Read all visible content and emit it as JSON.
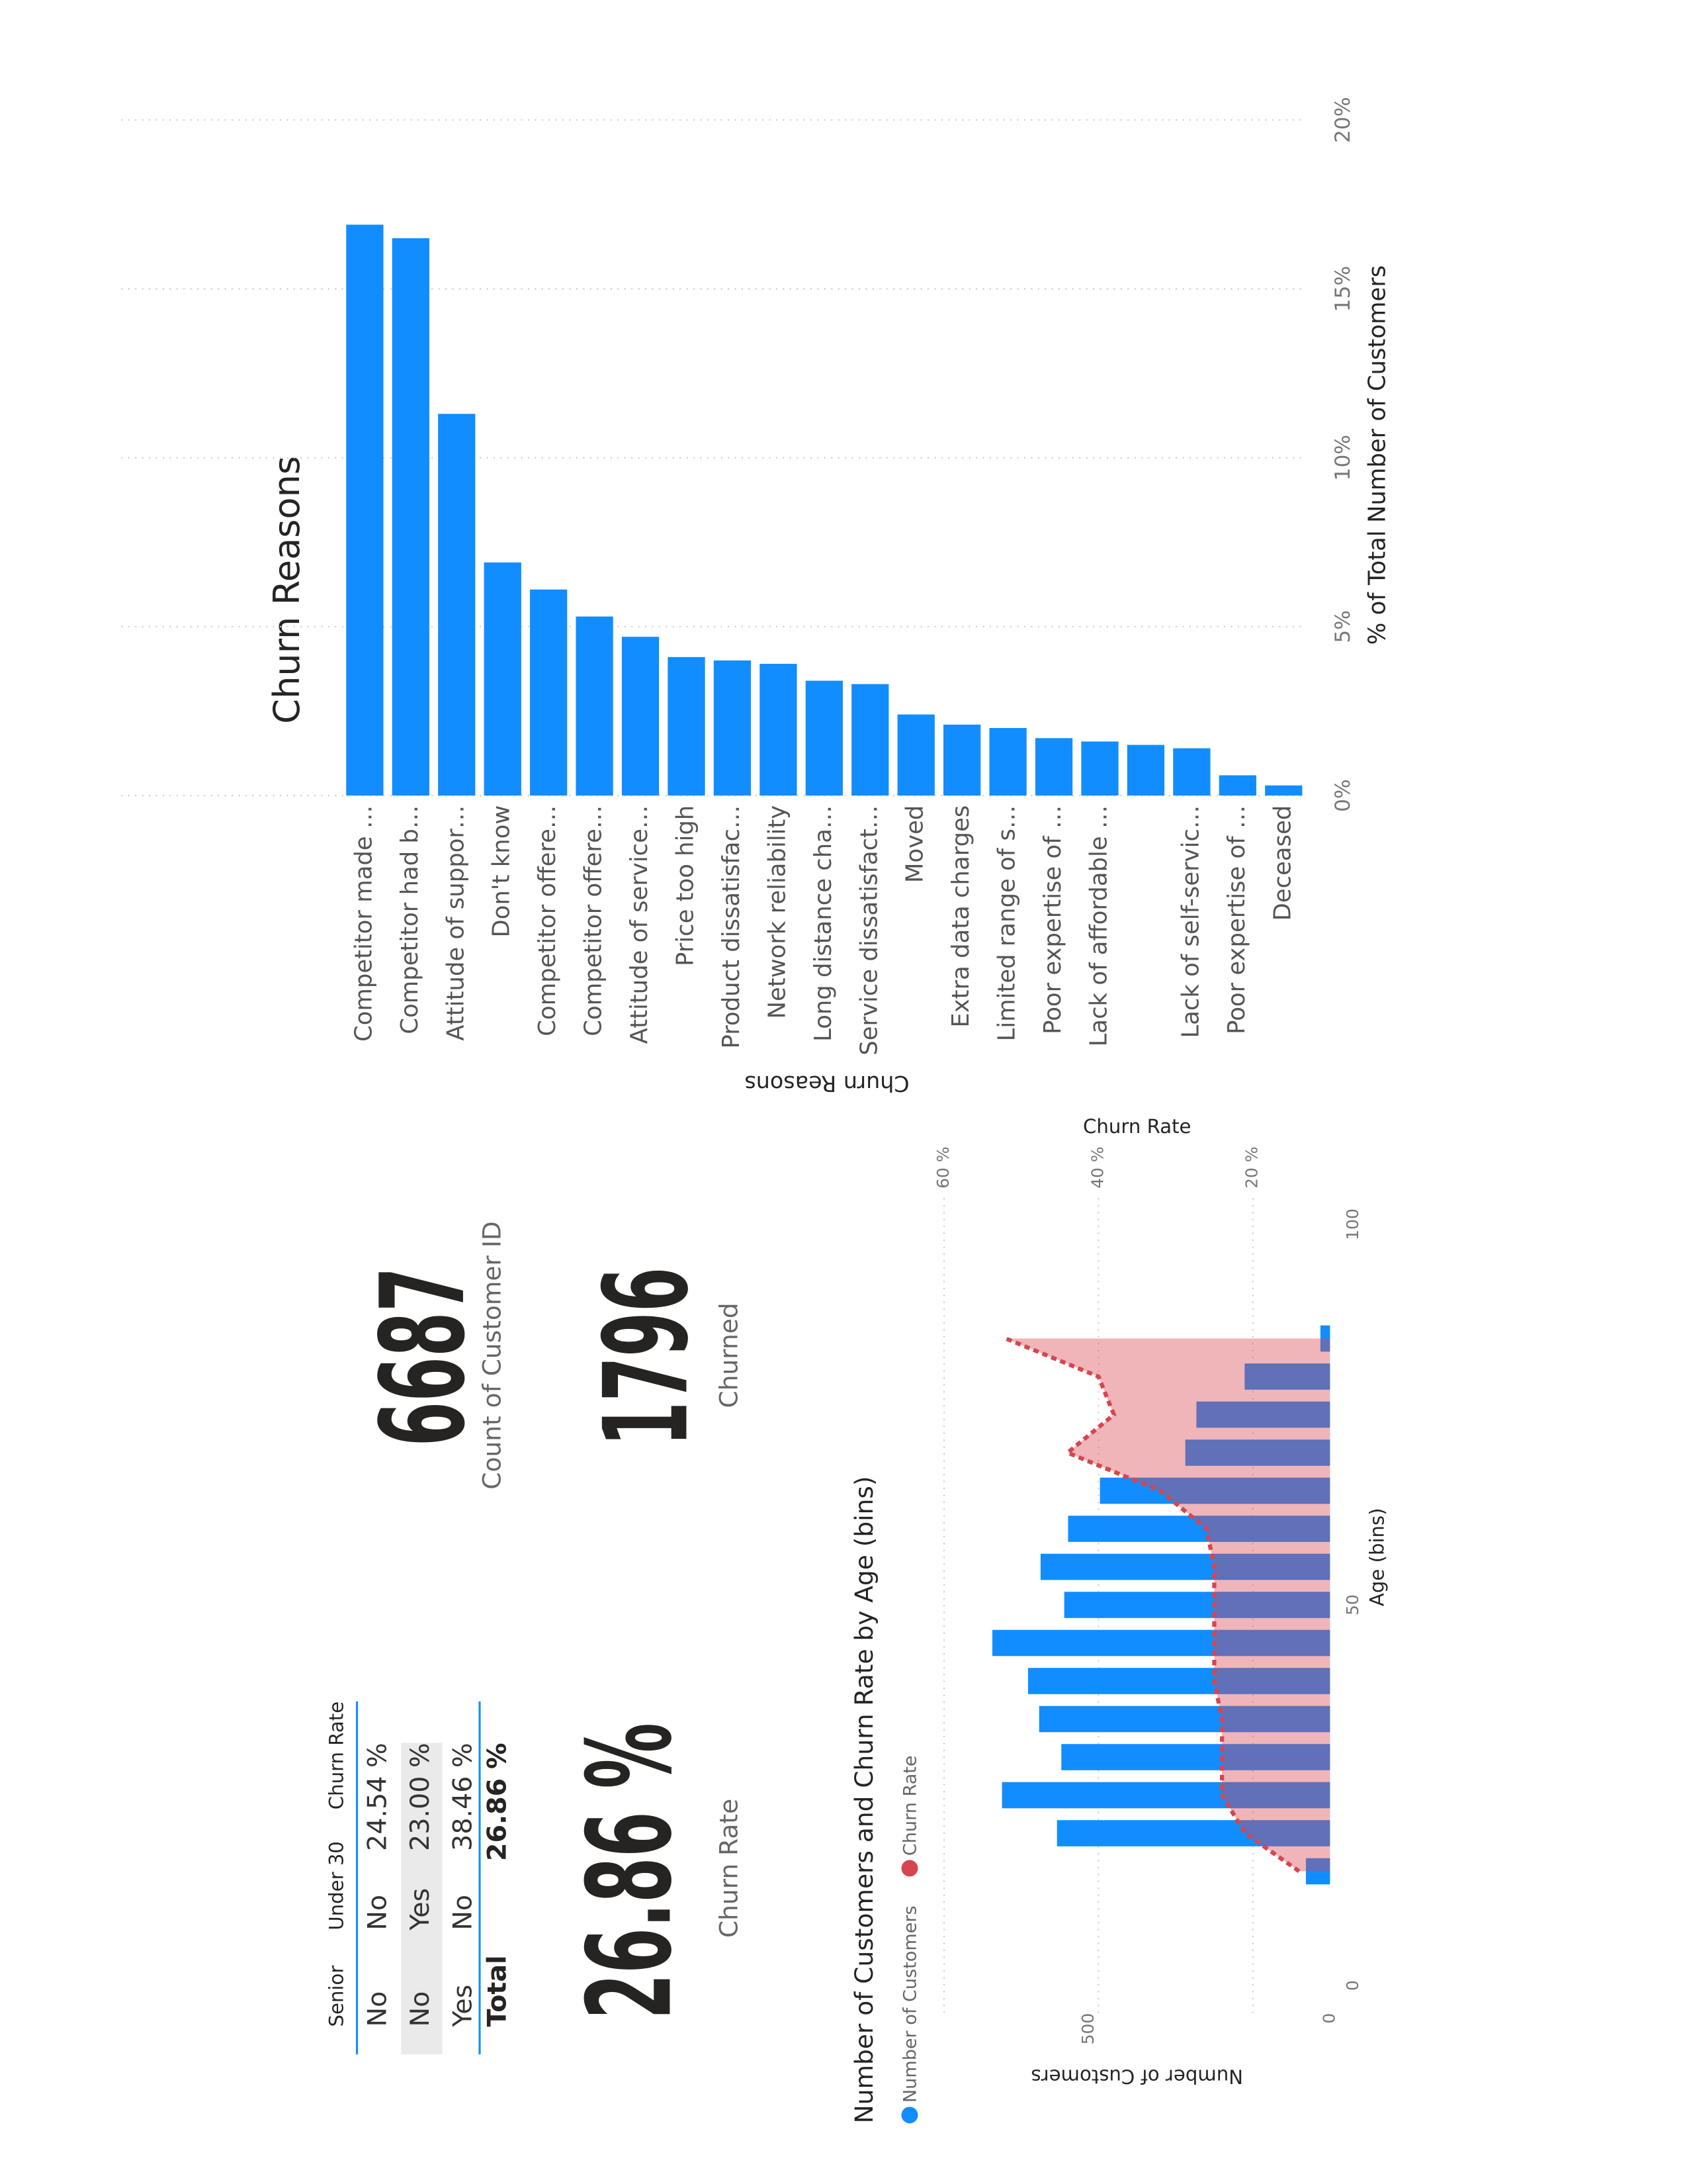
{
  "table": {
    "headers": [
      "Senior",
      "Under 30",
      "Churn Rate"
    ],
    "rows": [
      [
        "No",
        "No",
        "24.54 %"
      ],
      [
        "No",
        "Yes",
        "23.00 %"
      ],
      [
        "Yes",
        "No",
        "38.46 %"
      ]
    ],
    "total": [
      "Total",
      "26.86 %"
    ]
  },
  "cards": [
    {
      "value": "26.86 %",
      "label": "Churn Rate"
    },
    {
      "value": "6687",
      "label": "Count of Customer ID"
    },
    {
      "value": "1796",
      "label": "Churned"
    }
  ],
  "chart_data": [
    {
      "type": "combo",
      "title": "Number of Customers and Churn Rate by Age (bins)",
      "x": [
        15,
        20,
        25,
        30,
        35,
        40,
        45,
        50,
        55,
        60,
        65,
        70,
        75,
        80,
        85
      ],
      "series": [
        {
          "name": "Number of Customers",
          "color": "#118DFF",
          "type": "bar",
          "values": [
            50,
            566,
            680,
            557,
            603,
            626,
            700,
            551,
            600,
            543,
            477,
            300,
            277,
            177,
            20
          ]
        },
        {
          "name": "Churn Rate",
          "color": "#D64550",
          "type": "area",
          "axis": "y2",
          "values": [
            14,
            21,
            24,
            24,
            24,
            25,
            25,
            25,
            25,
            26,
            32,
            44,
            38,
            40,
            52
          ]
        }
      ],
      "xlabel": "Age (bins)",
      "ylabel": "Number of Customers",
      "y2label": "Churn Rate",
      "xlim": [
        0,
        100
      ],
      "xticks": [
        0,
        50,
        100
      ],
      "ylim": [
        0,
        800
      ],
      "yticks": [
        0,
        500
      ],
      "y2lim": [
        10,
        60
      ],
      "y2ticks": [
        {
          "value": 20,
          "label": "20 %"
        },
        {
          "value": 40,
          "label": "40 %"
        },
        {
          "value": 60,
          "label": "60 %"
        }
      ],
      "grid": true
    },
    {
      "type": "bar",
      "orientation": "horizontal",
      "title": "Churn Reasons",
      "categories": [
        "Competitor made …",
        "Competitor had b…",
        "Attitude of suppor…",
        "Don't know",
        "Competitor offere…",
        "Competitor offere…",
        "Attitude of service…",
        "Price too high",
        "Product dissatisfac…",
        "Network reliability",
        "Long distance cha…",
        "Service dissatisfact…",
        "Moved",
        "Extra data charges",
        "Limited range of s…",
        "Poor expertise of …",
        "Lack of affordable …",
        null,
        "Lack of self-servic…",
        "Poor expertise of …",
        "Deceased"
      ],
      "values": [
        16.9,
        16.5,
        11.3,
        6.9,
        6.1,
        5.3,
        4.7,
        4.1,
        4.0,
        3.9,
        3.4,
        3.3,
        2.4,
        2.1,
        2.0,
        1.7,
        1.6,
        1.5,
        1.4,
        0.6,
        0.3
      ],
      "color": "#118DFF",
      "xlabel": "% of Total Number of Customers",
      "ylabel": "Churn Reasons",
      "xlim": [
        0,
        20
      ],
      "xticks": [
        {
          "value": 0,
          "label": "0%"
        },
        {
          "value": 5,
          "label": "5%"
        },
        {
          "value": 10,
          "label": "10%"
        },
        {
          "value": 15,
          "label": "15%"
        },
        {
          "value": 20,
          "label": "20%"
        }
      ],
      "grid": true
    }
  ]
}
